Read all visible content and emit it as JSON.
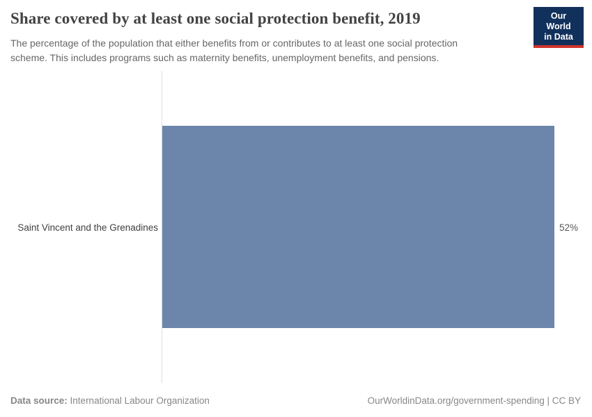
{
  "header": {
    "title": "Share covered by at least one social protection benefit, 2019",
    "subtitle": "The percentage of the population that either benefits from or contributes to at least one social protection scheme. This includes programs such as maternity benefits, unemployment benefits, and pensions.",
    "logo": {
      "line1": "Our World",
      "line2": "in Data",
      "bg_color": "#12305c",
      "accent_color": "#d0342c"
    }
  },
  "chart_data": {
    "type": "bar",
    "orientation": "horizontal",
    "title": "Share covered by at least one social protection benefit, 2019",
    "categories": [
      "Saint Vincent and the Grenadines"
    ],
    "values": [
      52
    ],
    "value_labels": [
      "52%"
    ],
    "xlabel": "",
    "ylabel": "",
    "xlim": [
      0,
      52
    ],
    "grid": false,
    "legend": "none",
    "bar_color": "#6c85ab",
    "axis_line_color": "#dedede"
  },
  "footer": {
    "source_label": "Data source:",
    "source_value": "International Labour Organization",
    "credit": "OurWorldinData.org/government-spending | CC BY"
  }
}
